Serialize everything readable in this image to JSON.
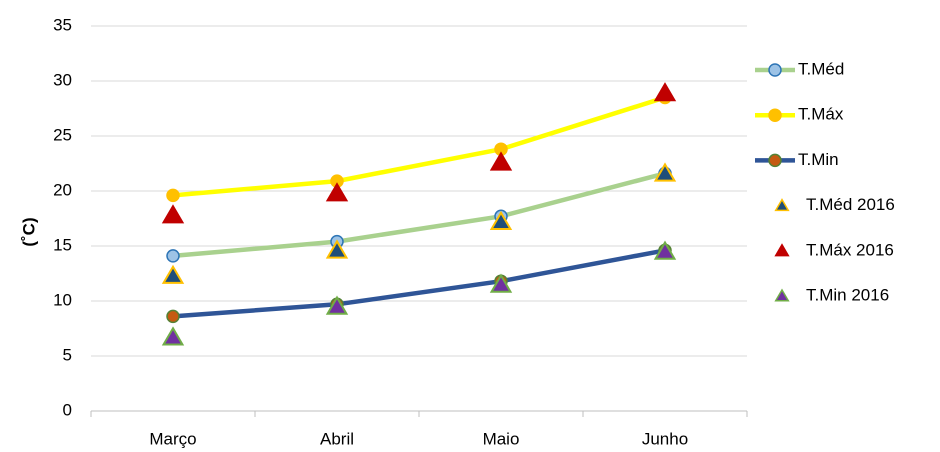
{
  "chart_data": {
    "type": "line",
    "y_label": "(˚C)",
    "categories": [
      "Março",
      "Abril",
      "Maio",
      "Junho"
    ],
    "ylim": [
      0,
      35
    ],
    "yticks": [
      0,
      5,
      10,
      15,
      20,
      25,
      30,
      35
    ],
    "grid": true,
    "series": [
      {
        "name": "T.Méd",
        "kind": "line",
        "color": "#a9d18e",
        "marker_fill": "#9dc3e6",
        "marker_edge": "#2e75b6",
        "values": [
          14.1,
          15.4,
          17.7,
          21.6
        ]
      },
      {
        "name": "T.Máx",
        "kind": "line",
        "color": "#ffff00",
        "marker_fill": "#ffc000",
        "marker_edge": "#ffc000",
        "values": [
          19.6,
          20.9,
          23.8,
          28.5
        ]
      },
      {
        "name": "T.Min",
        "kind": "line",
        "color": "#2f5597",
        "marker_fill": "#c55a11",
        "marker_edge": "#548235",
        "values": [
          8.6,
          9.7,
          11.8,
          14.6
        ]
      },
      {
        "name": "T.Méd 2016",
        "kind": "scatter",
        "marker_fill": "#1f4e79",
        "marker_edge": "#ffc000",
        "values": [
          12.3,
          14.6,
          17.2,
          21.6
        ]
      },
      {
        "name": "T.Máx 2016",
        "kind": "scatter",
        "marker_fill": "#c00000",
        "marker_edge": "#c00000",
        "values": [
          17.8,
          19.8,
          22.6,
          28.9
        ]
      },
      {
        "name": "T.Min 2016",
        "kind": "scatter",
        "marker_fill": "#7030a0",
        "marker_edge": "#70ad47",
        "values": [
          6.7,
          9.5,
          11.5,
          14.5
        ]
      }
    ]
  }
}
